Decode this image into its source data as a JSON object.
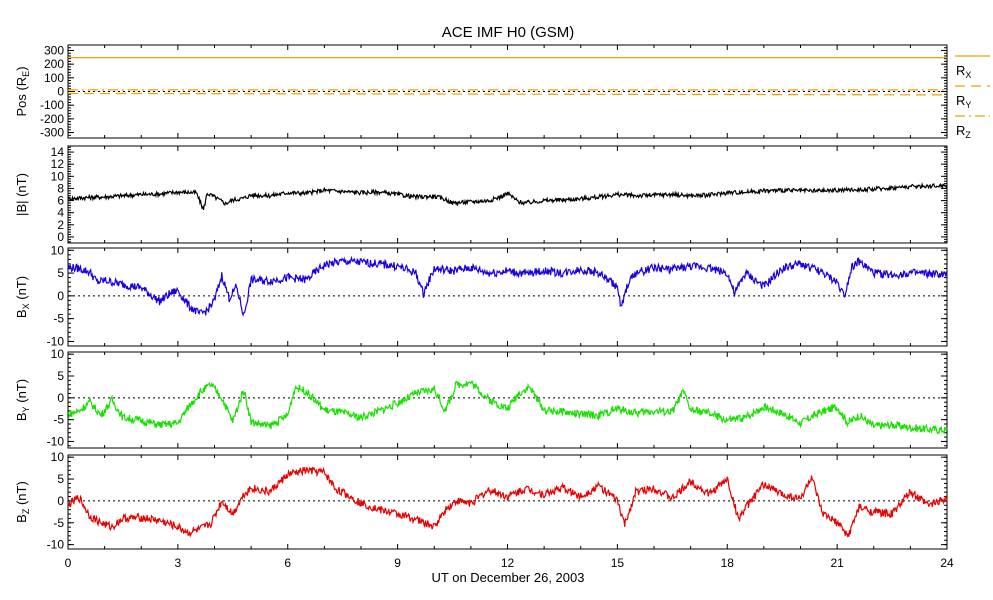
{
  "chart_data": {
    "title": "ACE IMF H0 (GSM)",
    "xlabel": "UT on December 26, 2003",
    "x_ticks": [
      "0",
      "3",
      "6",
      "9",
      "12",
      "15",
      "18",
      "21",
      "24"
    ],
    "xlim": [
      0,
      24
    ],
    "panels": [
      {
        "type": "line",
        "ylabel": "Pos (R_E)",
        "ylabel_main": "Pos (R",
        "ylabel_sub": "E",
        "ylabel_tail": ")",
        "ylim": [
          -340,
          340
        ],
        "y_ticks": [
          "300",
          "200",
          "100",
          "0",
          "-100",
          "-200",
          "-300"
        ],
        "y_tick_values": [
          300,
          200,
          100,
          0,
          -100,
          -200,
          -300
        ],
        "zero_line": true,
        "legend": [
          {
            "main": "R",
            "sub": "X",
            "style": "solid",
            "color": "#f0a000"
          },
          {
            "main": "R",
            "sub": "Y",
            "style": "dashed",
            "color": "#f0a000"
          },
          {
            "main": "R",
            "sub": "Z",
            "style": "dashdot",
            "color": "#f0a000"
          }
        ],
        "series": [
          {
            "name": "RX",
            "color": "#f0a000",
            "style": "solid",
            "x": [
              0,
              24
            ],
            "values": [
              248,
              248
            ]
          },
          {
            "name": "RY",
            "color": "#f0a000",
            "style": "dashed",
            "x": [
              0,
              24
            ],
            "values": [
              -14,
              -25
            ]
          },
          {
            "name": "RZ",
            "color": "#f0a000",
            "style": "dashdot",
            "x": [
              0,
              24
            ],
            "values": [
              12,
              12
            ]
          }
        ]
      },
      {
        "type": "line",
        "ylabel": "|B| (nT)",
        "ylabel_main": "|B| (nT)",
        "ylim": [
          -1,
          15
        ],
        "y_ticks": [
          "14",
          "12",
          "10",
          "8",
          "6",
          "4",
          "2",
          "0"
        ],
        "y_tick_values": [
          14,
          12,
          10,
          8,
          6,
          4,
          2,
          0
        ],
        "zero_line": false,
        "series": [
          {
            "name": "|B|",
            "color": "#000000",
            "x": [
              0,
              0.5,
              1,
              1.5,
              2,
              2.5,
              3,
              3.5,
              3.7,
              3.8,
              4,
              4.3,
              4.5,
              4.8,
              5,
              5.5,
              6,
              6.5,
              7,
              7.5,
              8,
              8.5,
              9,
              9.5,
              10,
              10.3,
              10.5,
              11,
              11.5,
              11.8,
              12,
              12.3,
              12.5,
              13,
              13.5,
              14,
              14.5,
              15,
              15.5,
              16,
              16.5,
              17,
              17.5,
              18,
              18.5,
              19,
              19.5,
              20,
              20.5,
              21,
              21.5,
              22,
              22.5,
              23,
              23.5,
              24
            ],
            "values": [
              6.3,
              6.5,
              6.6,
              6.8,
              7.0,
              7.1,
              7.4,
              7.3,
              4.5,
              7.2,
              6.6,
              5.5,
              6.1,
              6.4,
              6.9,
              6.8,
              7.3,
              7.2,
              7.7,
              7.5,
              7.3,
              7.4,
              7.0,
              6.6,
              6.7,
              6.2,
              5.6,
              5.8,
              6.0,
              6.6,
              7.2,
              5.8,
              5.6,
              6.0,
              6.1,
              6.3,
              6.6,
              7.0,
              6.8,
              6.9,
              7.0,
              6.8,
              6.9,
              7.3,
              7.4,
              7.6,
              7.7,
              7.6,
              7.6,
              7.7,
              7.8,
              7.9,
              8.1,
              8.3,
              8.4,
              8.5
            ]
          }
        ]
      },
      {
        "type": "line",
        "ylabel": "B_X (nT)",
        "ylabel_main": "B",
        "ylabel_sub": "X",
        "ylabel_tail": " (nT)",
        "ylim": [
          -11,
          10.5
        ],
        "y_ticks": [
          "10",
          "5",
          "0",
          "-5",
          "-10"
        ],
        "y_tick_values": [
          10,
          5,
          0,
          -5,
          -10
        ],
        "zero_line": true,
        "series": [
          {
            "name": "Bx",
            "color": "#1a00e0",
            "x": [
              0,
              0.3,
              0.6,
              0.8,
              1,
              1.5,
              2,
              2.5,
              2.8,
              3,
              3.3,
              3.6,
              3.8,
              4,
              4.2,
              4.4,
              4.6,
              4.8,
              5,
              5.5,
              6,
              6.5,
              7,
              7.5,
              8,
              8.5,
              9,
              9.5,
              9.7,
              10,
              10.5,
              11,
              11.5,
              12,
              12.5,
              13,
              13.5,
              14,
              14.5,
              15,
              15.1,
              15.3,
              15.5,
              16,
              16.5,
              17,
              17.5,
              18,
              18.2,
              18.5,
              19,
              19.5,
              20,
              20.5,
              21,
              21.2,
              21.4,
              21.6,
              22,
              22.5,
              23,
              23.5,
              24
            ],
            "values": [
              6.3,
              6.0,
              5.2,
              3.0,
              3.4,
              2.5,
              1.8,
              -1.2,
              0.6,
              1.2,
              -2.2,
              -4.0,
              -3.2,
              -1.0,
              4.5,
              -0.5,
              2.0,
              -4.4,
              3.5,
              3.3,
              4.0,
              3.5,
              6.8,
              7.6,
              7.4,
              7.0,
              6.5,
              5.0,
              0.5,
              6.0,
              5.5,
              6.2,
              5.0,
              5.5,
              4.8,
              5.5,
              5.0,
              5.8,
              5.0,
              2.0,
              -2.8,
              3.0,
              5.0,
              6.2,
              5.8,
              6.5,
              6.2,
              5.0,
              0.5,
              5.0,
              2.0,
              6.0,
              7.0,
              5.5,
              3.0,
              0.0,
              6.5,
              7.5,
              5.0,
              4.6,
              5.0,
              4.8,
              4.6
            ]
          }
        ]
      },
      {
        "type": "line",
        "ylabel": "B_Y (nT)",
        "ylabel_main": "B",
        "ylabel_sub": "Y",
        "ylabel_tail": " (nT)",
        "ylim": [
          -11.5,
          10.5
        ],
        "y_ticks": [
          "10",
          "5",
          "0",
          "-5",
          "-10"
        ],
        "y_tick_values": [
          10,
          5,
          0,
          -5,
          -10
        ],
        "zero_line": true,
        "series": [
          {
            "name": "By",
            "color": "#18e000",
            "x": [
              0,
              0.3,
              0.6,
              0.9,
              1.2,
              1.5,
              2,
              2.5,
              3,
              3.3,
              3.6,
              3.9,
              4.2,
              4.5,
              4.8,
              5,
              5.5,
              6,
              6.2,
              6.5,
              7,
              7.5,
              8,
              8.5,
              9,
              9.5,
              10,
              10.3,
              10.6,
              11,
              11.5,
              12,
              12.3,
              12.6,
              13,
              13.5,
              14,
              14.5,
              15,
              15.5,
              16,
              16.5,
              16.8,
              17,
              17.5,
              18,
              18.5,
              19,
              19.5,
              20,
              20.5,
              21,
              21.3,
              21.6,
              22,
              22.5,
              23,
              23.5,
              24
            ],
            "values": [
              -3.8,
              -3.0,
              -1.0,
              -4.0,
              -0.5,
              -4.5,
              -5.2,
              -6.2,
              -5.8,
              -2.0,
              1.2,
              3.0,
              0.0,
              -5.5,
              2.0,
              -5.5,
              -6.5,
              -4.0,
              2.5,
              1.5,
              -2.8,
              -3.5,
              -4.5,
              -3.0,
              -1.2,
              1.0,
              2.0,
              -3.0,
              3.0,
              3.5,
              -0.5,
              -2.5,
              1.0,
              2.5,
              -2.8,
              -3.2,
              -3.8,
              -4.0,
              -2.5,
              -3.5,
              -3.0,
              -3.2,
              1.5,
              -2.8,
              -3.5,
              -5.2,
              -4.5,
              -2.0,
              -3.5,
              -5.8,
              -3.5,
              -2.0,
              -5.8,
              -4.0,
              -6.5,
              -6.2,
              -6.8,
              -7.2,
              -7.4
            ]
          }
        ]
      },
      {
        "type": "line",
        "ylabel": "B_Z (nT)",
        "ylabel_main": "B",
        "ylabel_sub": "Z",
        "ylabel_tail": " (nT)",
        "ylim": [
          -11,
          10.5
        ],
        "y_ticks": [
          "10",
          "5",
          "0",
          "-5",
          "-10"
        ],
        "y_tick_values": [
          10,
          5,
          0,
          -5,
          -10
        ],
        "zero_line": true,
        "series": [
          {
            "name": "Bz",
            "color": "#e60000",
            "x": [
              0,
              0.3,
              0.6,
              0.9,
              1.2,
              1.5,
              2,
              2.5,
              3,
              3.3,
              3.6,
              3.9,
              4.2,
              4.5,
              4.8,
              5,
              5.5,
              6,
              6.5,
              7,
              7.3,
              7.6,
              8,
              8.5,
              9,
              9.5,
              10,
              10.3,
              10.6,
              11,
              11.5,
              12,
              12.5,
              13,
              13.5,
              14,
              14.5,
              15,
              15.2,
              15.5,
              16,
              16.5,
              17,
              17.5,
              18,
              18.3,
              18.6,
              19,
              19.5,
              20,
              20.3,
              20.6,
              21,
              21.3,
              21.6,
              22,
              22.5,
              23,
              23.5,
              24
            ],
            "values": [
              -1.0,
              0.8,
              -3.5,
              -5.0,
              -6.0,
              -4.0,
              -3.8,
              -4.5,
              -6.0,
              -7.3,
              -6.5,
              -5.2,
              0.0,
              -3.0,
              1.5,
              3.0,
              2.0,
              6.0,
              7.0,
              6.5,
              2.8,
              1.5,
              -0.5,
              -2.0,
              -3.0,
              -4.2,
              -6.0,
              -2.0,
              0.0,
              -0.5,
              2.5,
              1.0,
              2.8,
              1.5,
              3.0,
              1.0,
              3.5,
              0.0,
              -5.5,
              2.0,
              3.0,
              0.5,
              4.5,
              1.5,
              5.0,
              -4.0,
              -0.5,
              3.8,
              1.5,
              0.5,
              5.5,
              -3.0,
              -5.0,
              -8.0,
              -1.5,
              -2.5,
              -3.0,
              2.0,
              -1.0,
              0.8
            ]
          }
        ]
      }
    ]
  }
}
